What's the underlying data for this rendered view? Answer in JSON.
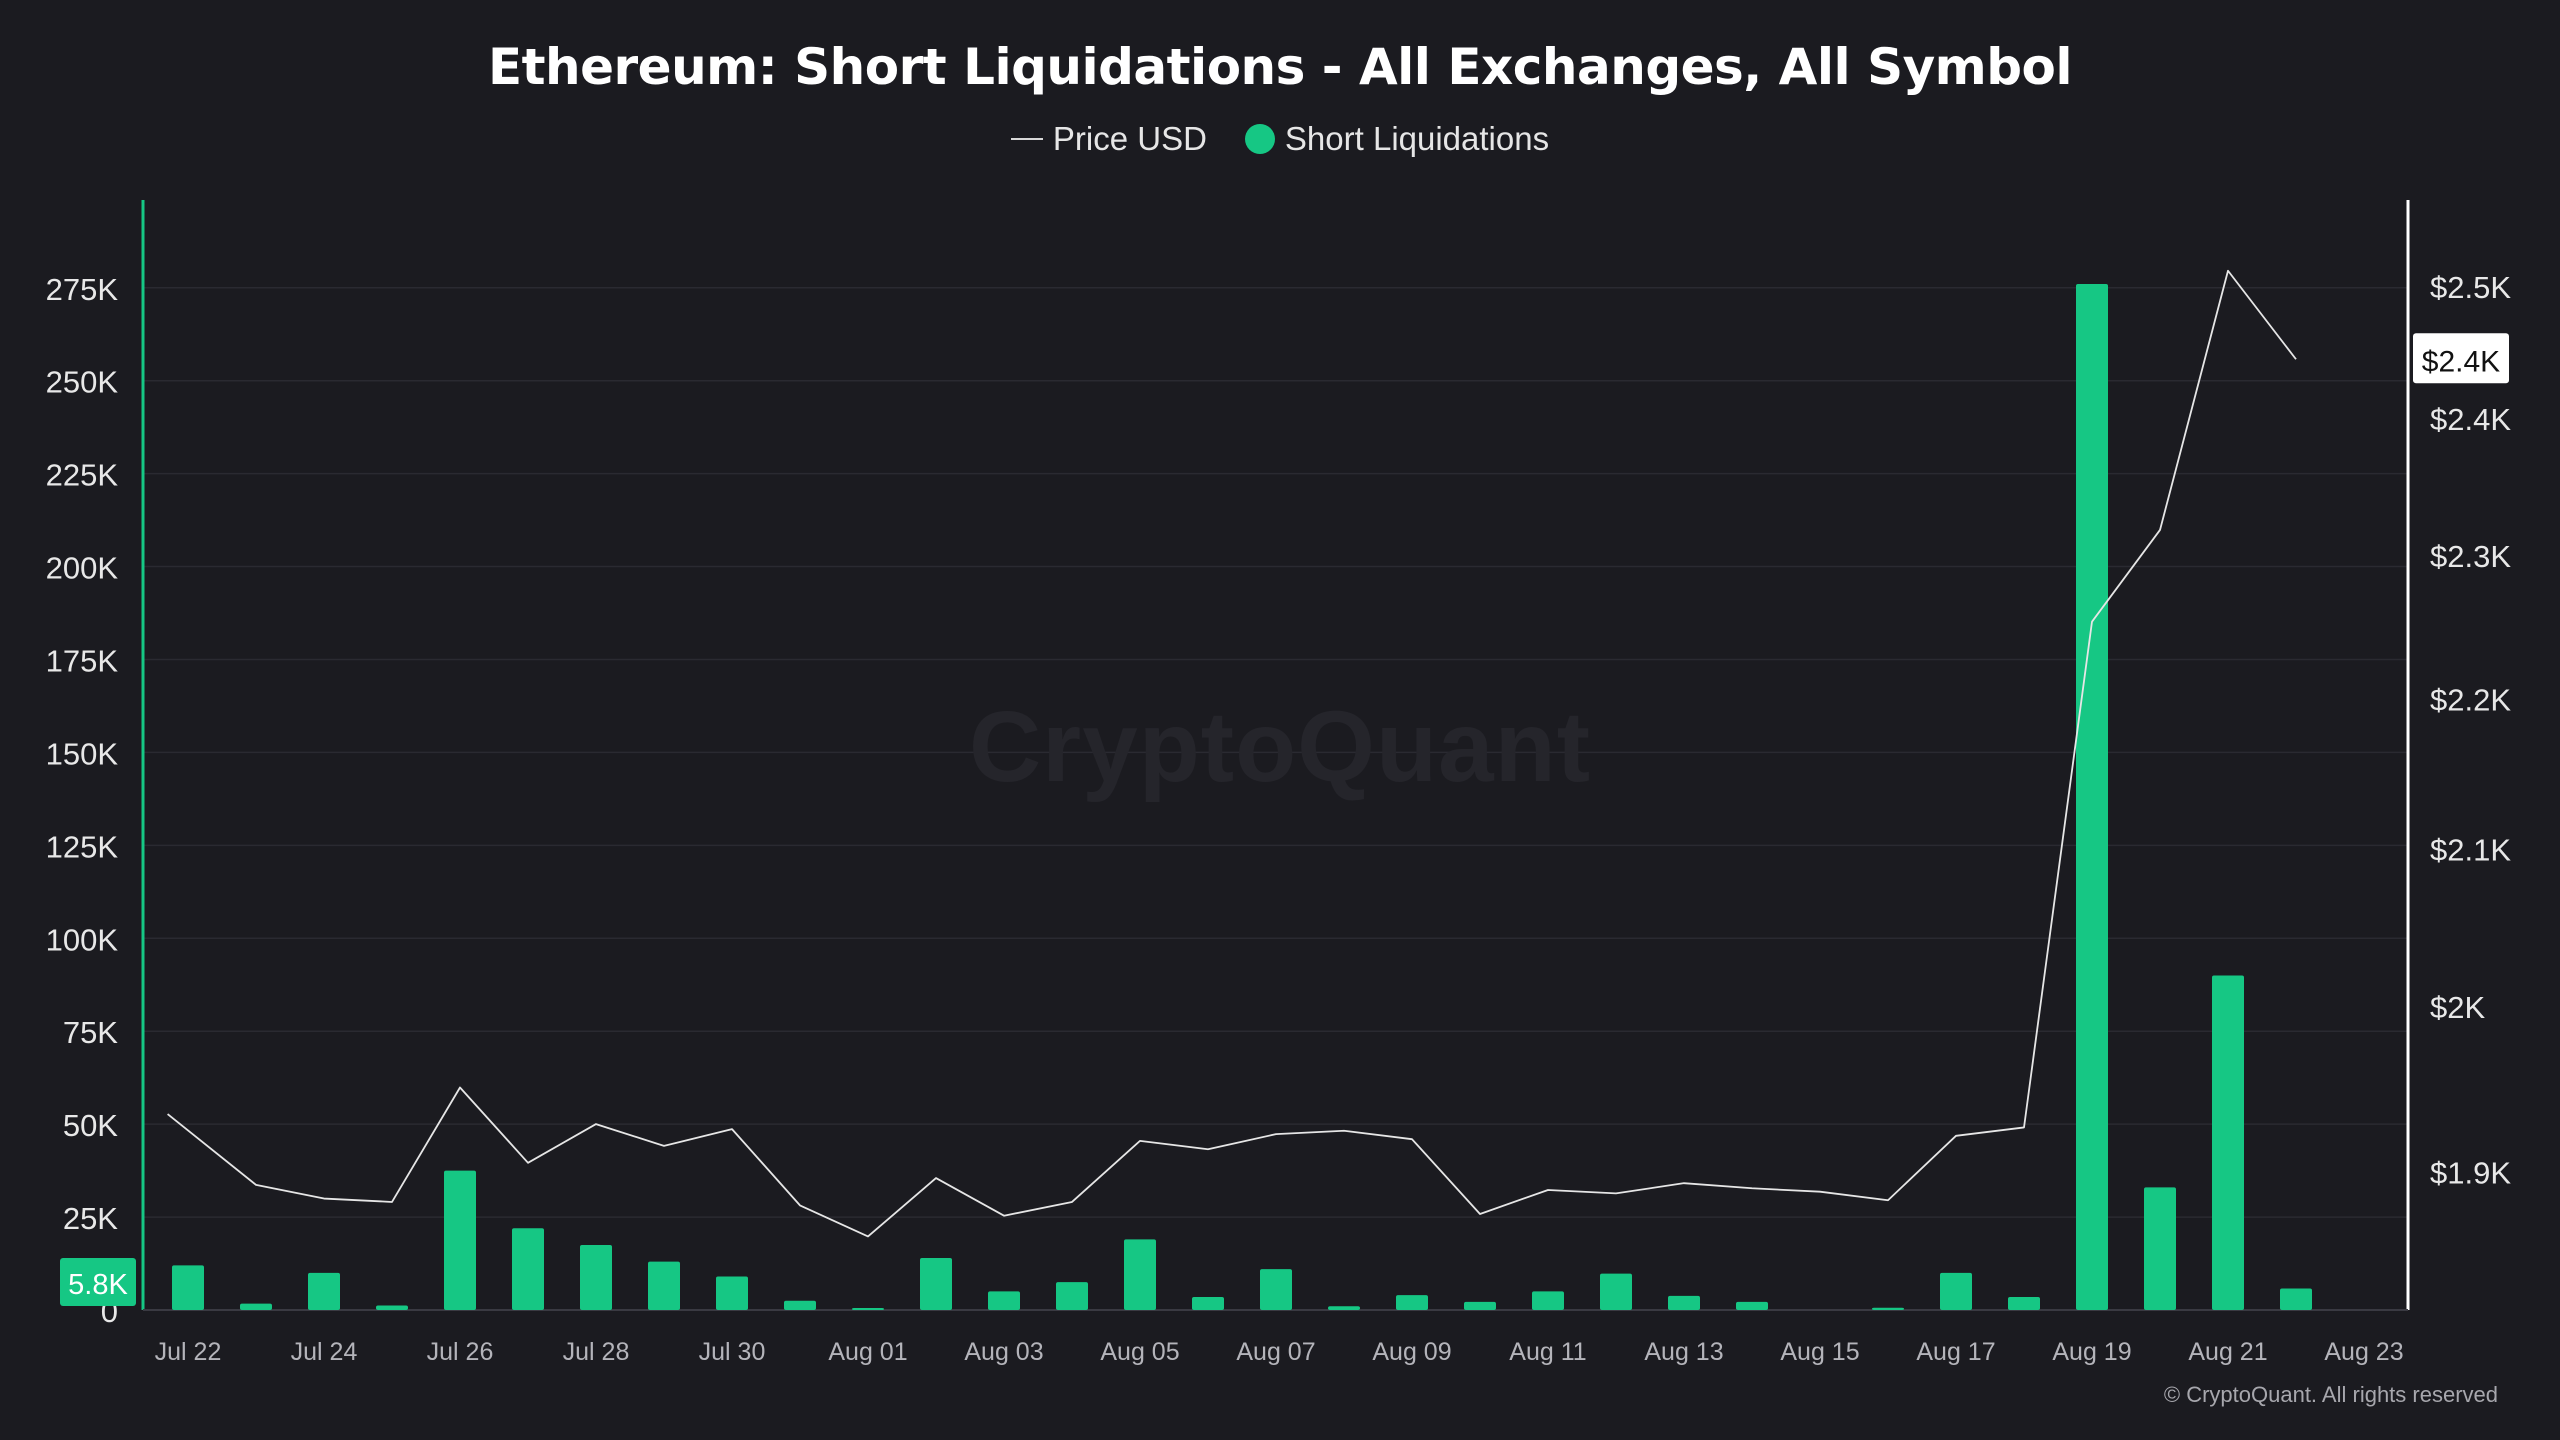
{
  "chart_data": {
    "type": "bar",
    "title": "Ethereum: Short Liquidations - All Exchanges, All Symbol",
    "legend": [
      "Price USD",
      "Short Liquidations"
    ],
    "legend_placement": "top-center",
    "grid": true,
    "left_axis": {
      "ticks": [
        "0",
        "25K",
        "50K",
        "75K",
        "100K",
        "125K",
        "150K",
        "175K",
        "200K",
        "225K",
        "250K",
        "275K"
      ],
      "tick_values": [
        0,
        25000,
        50000,
        75000,
        100000,
        125000,
        150000,
        175000,
        200000,
        225000,
        250000,
        275000
      ],
      "range": [
        0,
        290000
      ]
    },
    "right_axis": {
      "ticks": [
        "$1.9K",
        "$2K",
        "$2.1K",
        "$2.2K",
        "$2.3K",
        "$2.4K",
        "$2.5K"
      ],
      "tick_values": [
        1.9,
        2.0,
        2.1,
        2.2,
        2.3,
        2.4,
        2.5
      ],
      "unit": "thousand USD",
      "scale": "log",
      "range": [
        1.82,
        2.54
      ]
    },
    "x_ticks": [
      "Jul 22",
      "Jul 24",
      "Jul 26",
      "Jul 28",
      "Jul 30",
      "Aug 01",
      "Aug 03",
      "Aug 05",
      "Aug 07",
      "Aug 09",
      "Aug 11",
      "Aug 13",
      "Aug 15",
      "Aug 17",
      "Aug 19",
      "Aug 21",
      "Aug 23"
    ],
    "dates": [
      "Jul 22",
      "Jul 23",
      "Jul 24",
      "Jul 25",
      "Jul 26",
      "Jul 27",
      "Jul 28",
      "Jul 29",
      "Jul 30",
      "Jul 31",
      "Aug 01",
      "Aug 02",
      "Aug 03",
      "Aug 04",
      "Aug 05",
      "Aug 06",
      "Aug 07",
      "Aug 08",
      "Aug 09",
      "Aug 10",
      "Aug 11",
      "Aug 12",
      "Aug 13",
      "Aug 14",
      "Aug 15",
      "Aug 16",
      "Aug 17",
      "Aug 18",
      "Aug 19",
      "Aug 20",
      "Aug 21",
      "Aug 22",
      "Aug 23"
    ],
    "series": [
      {
        "name": "Short Liquidations",
        "type": "bar",
        "color": "#16c784",
        "values": [
          12000,
          1700,
          10000,
          1200,
          37500,
          22000,
          17500,
          13000,
          9000,
          2500,
          500,
          14000,
          5000,
          7500,
          19000,
          3500,
          11000,
          1000,
          4000,
          2200,
          5000,
          9800,
          3800,
          2200,
          0,
          600,
          10000,
          3500,
          276000,
          33000,
          90000,
          5800,
          null
        ]
      },
      {
        "name": "Price USD",
        "type": "line",
        "color": "#e6e6e6",
        "values": [
          1.934,
          1.892,
          1.884,
          1.882,
          1.95,
          1.905,
          1.928,
          1.915,
          1.925,
          1.88,
          1.862,
          1.896,
          1.874,
          1.882,
          1.918,
          1.913,
          1.922,
          1.924,
          1.919,
          1.875,
          1.889,
          1.887,
          1.893,
          1.89,
          1.888,
          1.883,
          1.921,
          1.926,
          2.253,
          2.318,
          2.512,
          2.444,
          null
        ],
        "x_start_offset": -0.5
      }
    ],
    "current_value_labels": {
      "left": "5.8K",
      "right": "$2.4K"
    }
  },
  "watermark": "CryptoQuant",
  "copyright": "© CryptoQuant. All rights reserved"
}
